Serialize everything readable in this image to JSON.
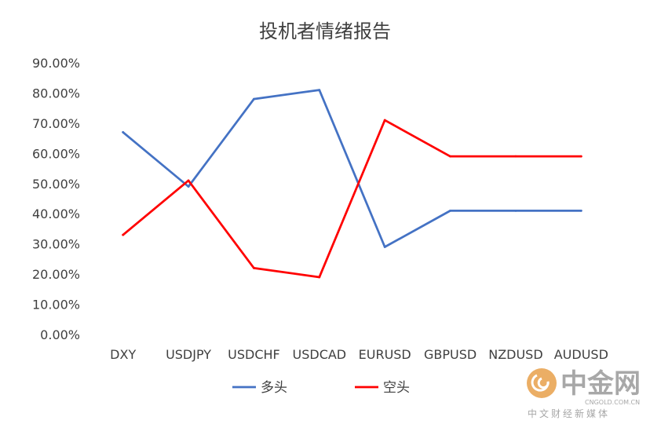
{
  "chart_data": {
    "type": "line",
    "title": "投机者情绪报告",
    "categories": [
      "DXY",
      "USDJPY",
      "USDCHF",
      "USDCAD",
      "EURUSD",
      "GBPUSD",
      "NZDUSD",
      "AUDUSD"
    ],
    "series": [
      {
        "name": "多头",
        "color": "#4472c4",
        "values": [
          0.67,
          0.49,
          0.78,
          0.81,
          0.29,
          0.41,
          0.41,
          0.41
        ]
      },
      {
        "name": "空头",
        "color": "#ff0000",
        "values": [
          0.33,
          0.51,
          0.22,
          0.19,
          0.71,
          0.59,
          0.59,
          0.59
        ]
      }
    ],
    "ylim": [
      0,
      0.9
    ],
    "yticks": [
      "0.00%",
      "10.00%",
      "20.00%",
      "30.00%",
      "40.00%",
      "50.00%",
      "60.00%",
      "70.00%",
      "80.00%",
      "90.00%"
    ],
    "grid": false,
    "legend": "bottom-center"
  },
  "watermark": {
    "brand": "中金网",
    "url": "CNGOLD.COM.CN",
    "tagline": "中文财经新媒体",
    "logo_color": "#e8a04a"
  }
}
